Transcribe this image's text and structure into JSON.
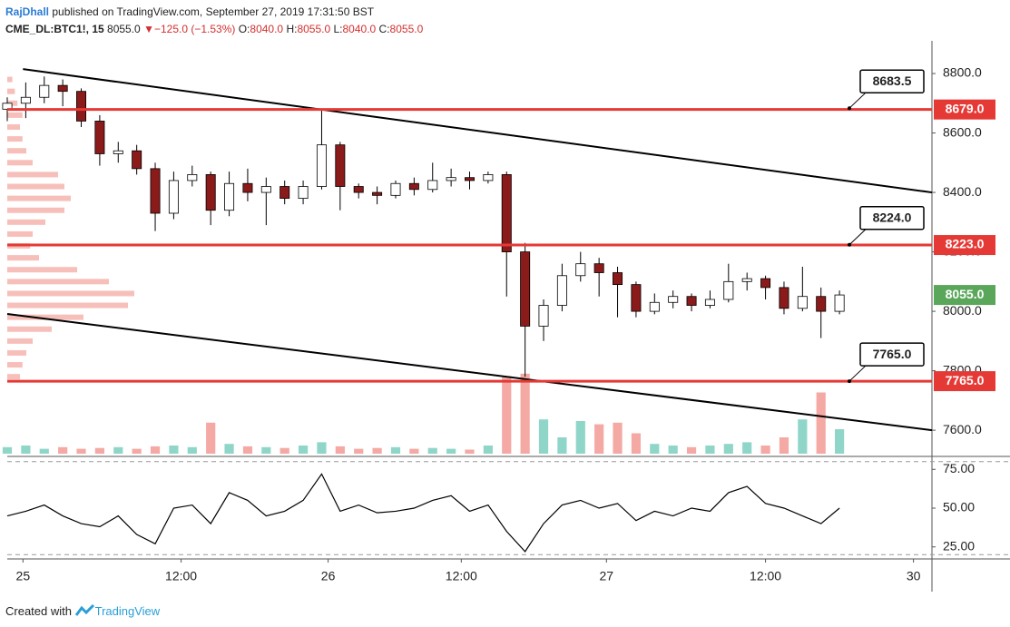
{
  "header": {
    "author": "RajDhall",
    "published": "published on TradingView.com, September 27, 2019 17:31:50 BST",
    "symbol": "CME_DL:BTC1!, 15",
    "price": "8055.0",
    "arrow": "▼",
    "change": "−125.0 (−1.53%)",
    "open_label": "O:",
    "open": "8040.0",
    "high_label": "H:",
    "high": "8055.0",
    "low_label": "L:",
    "low": "8040.0",
    "close_label": "C:",
    "close": "8055.0"
  },
  "footer": {
    "created": "Created with",
    "brand": "TradingView"
  },
  "chart_data": [
    {
      "type": "candlestick",
      "x": [
        0,
        2,
        4,
        6,
        8,
        10,
        12,
        14,
        16,
        18,
        20,
        22,
        24,
        26,
        28,
        30,
        32,
        34,
        36,
        38,
        40,
        42,
        44,
        46,
        48,
        50,
        52,
        54,
        56,
        58,
        60,
        62,
        64,
        66,
        68,
        70,
        72,
        74,
        76,
        78,
        80,
        82,
        84,
        86,
        88,
        90
      ],
      "open": [
        8680,
        8700,
        8720,
        8760,
        8740,
        8640,
        8530,
        8540,
        8480,
        8330,
        8440,
        8460,
        8340,
        8430,
        8400,
        8420,
        8380,
        8420,
        8560,
        8420,
        8400,
        8390,
        8430,
        8410,
        8440,
        8450,
        8440,
        8460,
        8200,
        7950,
        8020,
        8120,
        8160,
        8130,
        8090,
        8000,
        8030,
        8050,
        8020,
        8040,
        8100,
        8110,
        8080,
        8010,
        8050,
        8000
      ],
      "high": [
        8720,
        8770,
        8790,
        8780,
        8750,
        8660,
        8570,
        8560,
        8500,
        8470,
        8490,
        8470,
        8470,
        8480,
        8450,
        8440,
        8440,
        8680,
        8570,
        8430,
        8420,
        8440,
        8450,
        8500,
        8480,
        8470,
        8470,
        8470,
        8230,
        8040,
        8160,
        8200,
        8180,
        8150,
        8100,
        8060,
        8070,
        8060,
        8070,
        8160,
        8130,
        8120,
        8100,
        8150,
        8080,
        8070
      ],
      "low": [
        8640,
        8650,
        8700,
        8690,
        8620,
        8490,
        8500,
        8460,
        8270,
        8310,
        8420,
        8290,
        8320,
        8370,
        8290,
        8360,
        8360,
        8410,
        8340,
        8380,
        8360,
        8380,
        8390,
        8400,
        8420,
        8410,
        8430,
        8050,
        7780,
        7900,
        8000,
        8100,
        8050,
        7980,
        7980,
        7990,
        8010,
        8000,
        8010,
        8030,
        8070,
        8040,
        7990,
        8000,
        7910,
        7990
      ],
      "close": [
        8700,
        8720,
        8760,
        8740,
        8640,
        8530,
        8540,
        8480,
        8330,
        8440,
        8460,
        8340,
        8430,
        8400,
        8420,
        8380,
        8420,
        8560,
        8420,
        8400,
        8390,
        8430,
        8410,
        8440,
        8450,
        8440,
        8460,
        8200,
        7950,
        8020,
        8120,
        8160,
        8130,
        8090,
        8000,
        8030,
        8050,
        8020,
        8040,
        8100,
        8110,
        8080,
        8010,
        8050,
        8000,
        8055
      ],
      "volume": [
        8,
        10,
        6,
        8,
        6,
        7,
        8,
        6,
        9,
        10,
        8,
        38,
        12,
        9,
        8,
        7,
        10,
        14,
        9,
        6,
        7,
        8,
        6,
        7,
        6,
        5,
        10,
        95,
        98,
        42,
        20,
        40,
        36,
        38,
        25,
        12,
        10,
        8,
        10,
        12,
        14,
        10,
        20,
        42,
        75,
        30
      ],
      "vlim": [
        0,
        100
      ],
      "up_color": "#ffffff",
      "down_color": "#8b1a1a",
      "vol_up_color": "#8fd6c9",
      "vol_down_color": "#f4a9a4",
      "xlim": [
        0,
        100
      ],
      "xticks": [
        {
          "value": 1.7,
          "label": "25"
        },
        {
          "value": 18.8,
          "label": "12:00"
        },
        {
          "value": 34.7,
          "label": "26"
        },
        {
          "value": 49.1,
          "label": "12:00"
        },
        {
          "value": 64.8,
          "label": "27"
        },
        {
          "value": 82,
          "label": "12:00"
        },
        {
          "value": 98,
          "label": "30"
        }
      ],
      "ylim": [
        7521,
        8910
      ],
      "yticks": [
        {
          "value": 7600,
          "label": "7600.0"
        },
        {
          "value": 7800,
          "label": "7800.0"
        },
        {
          "value": 8000,
          "label": "8000.0"
        },
        {
          "value": 8200,
          "label": "8200.0"
        },
        {
          "value": 8400,
          "label": "8400.0"
        },
        {
          "value": 8600,
          "label": "8600.0"
        },
        {
          "value": 8800,
          "label": "8800.0"
        }
      ],
      "hlines": [
        {
          "value": 8679,
          "label": "8679.0"
        },
        {
          "value": 8223,
          "label": "8223.0"
        },
        {
          "value": 7765,
          "label": "7765.0"
        }
      ],
      "hline_color": "#e53935",
      "callouts": [
        8683.5,
        {
          "value": 8224,
          "label": "8224.0"
        },
        {
          "value": 7765,
          "label": "7765.0"
        }
      ],
      "last": {
        "value": 8055,
        "label": "8055.0"
      },
      "last_color": "#5aa65a",
      "trendlines": [
        {
          "x": [
            1.7,
            100
          ],
          "y": [
            8815,
            8400
          ]
        },
        {
          "x": [
            0,
            100
          ],
          "y": [
            7991,
            7600
          ]
        }
      ],
      "volume_profile": {
        "prices": [
          7780,
          7820,
          7860,
          7900,
          7940,
          7980,
          8020,
          8060,
          8100,
          8140,
          8180,
          8220,
          8260,
          8300,
          8340,
          8380,
          8420,
          8460,
          8500,
          8540,
          8580,
          8620,
          8660,
          8700,
          8740,
          8780
        ],
        "values": [
          10,
          12,
          15,
          20,
          35,
          60,
          95,
          100,
          80,
          55,
          25,
          18,
          20,
          30,
          45,
          50,
          45,
          40,
          20,
          15,
          12,
          10,
          12,
          8,
          6,
          4
        ],
        "color": "#f08a80"
      }
    },
    {
      "type": "line",
      "x": [
        0,
        2,
        4,
        6,
        8,
        10,
        12,
        14,
        16,
        18,
        20,
        22,
        24,
        26,
        28,
        30,
        32,
        34,
        36,
        38,
        40,
        42,
        44,
        46,
        48,
        50,
        52,
        54,
        56,
        58,
        60,
        62,
        64,
        66,
        68,
        70,
        72,
        74,
        76,
        78,
        80,
        82,
        84,
        86,
        88,
        90
      ],
      "values": [
        45,
        48,
        52,
        45,
        40,
        38,
        45,
        33,
        27,
        50,
        52,
        40,
        60,
        55,
        45,
        48,
        55,
        72,
        48,
        52,
        47,
        48,
        50,
        55,
        58,
        48,
        52,
        35,
        22,
        40,
        52,
        55,
        50,
        53,
        42,
        48,
        45,
        50,
        48,
        60,
        64,
        53,
        50,
        45,
        40,
        50
      ],
      "color": "#000000",
      "xlim": [
        0,
        100
      ],
      "ylim": [
        19,
        81
      ],
      "yticks": [
        {
          "value": 25,
          "label": "25.00"
        },
        {
          "value": 50,
          "label": "50.00"
        },
        {
          "value": 75,
          "label": "75.00"
        }
      ],
      "bands": [
        20,
        80
      ]
    }
  ]
}
